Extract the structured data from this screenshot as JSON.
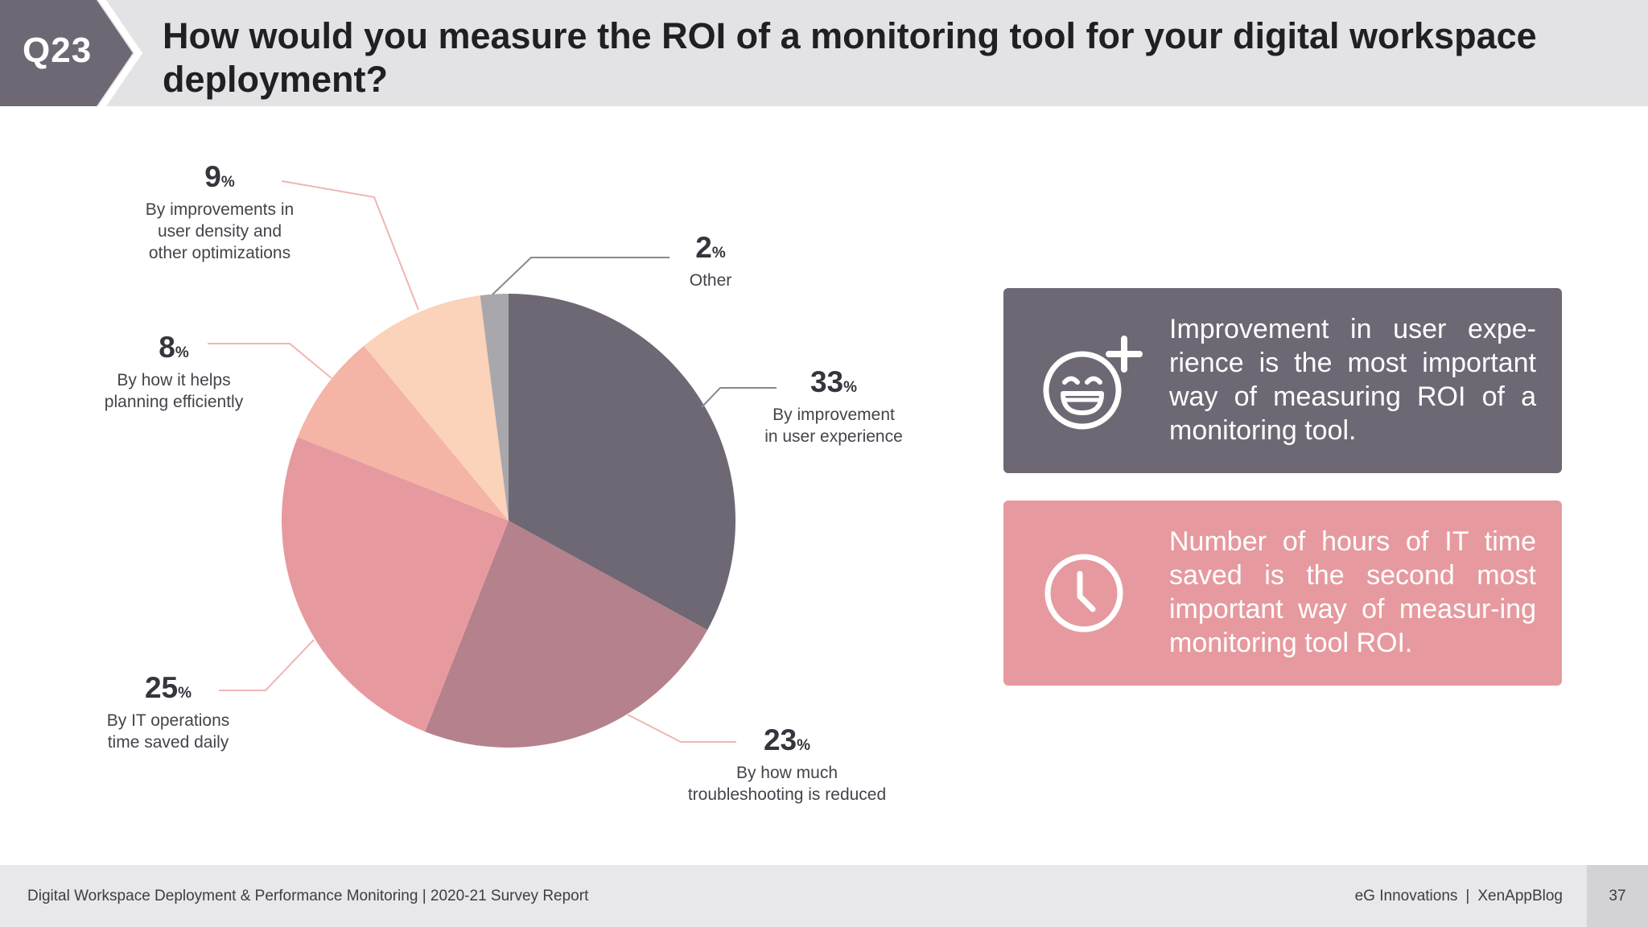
{
  "header": {
    "badge": "Q23",
    "title": "How would you measure the ROI of a monitoring tool for your digital workspace deployment?"
  },
  "chart_data": {
    "type": "pie",
    "title": "How would you measure the ROI of a monitoring tool for your digital workspace deployment?",
    "unit": "%",
    "slices": [
      {
        "label_lines": [
          "By improvement",
          "in user experience"
        ],
        "value": 33,
        "color": "#6d6874"
      },
      {
        "label_lines": [
          "By how much",
          "troubleshooting is reduced"
        ],
        "value": 23,
        "color": "#b4818c"
      },
      {
        "label_lines": [
          "By IT operations",
          "time saved daily"
        ],
        "value": 25,
        "color": "#e69a9f"
      },
      {
        "label_lines": [
          "By how it helps",
          "planning efficiently"
        ],
        "value": 8,
        "color": "#f4b4a6"
      },
      {
        "label_lines": [
          "By improvements in",
          "user density and",
          "other optimizations"
        ],
        "value": 9,
        "color": "#fbd2ba"
      },
      {
        "label_lines": [
          "Other"
        ],
        "value": 2,
        "color": "#a8a8ac"
      }
    ]
  },
  "callouts": [
    {
      "icon": "smiley-plus-icon",
      "text": "Improvement in user expe-rience is the most important way of measuring ROI of a monitoring tool."
    },
    {
      "icon": "clock-icon",
      "text": "Number of hours of IT time saved is the second most important way of measur-ing monitoring tool ROI."
    }
  ],
  "footer": {
    "left": "Digital Workspace Deployment & Performance Monitoring | 2020-21 Survey Report",
    "brand1": "eG Innovations",
    "separator": "|",
    "brand2": "XenAppBlog",
    "page": "37"
  }
}
